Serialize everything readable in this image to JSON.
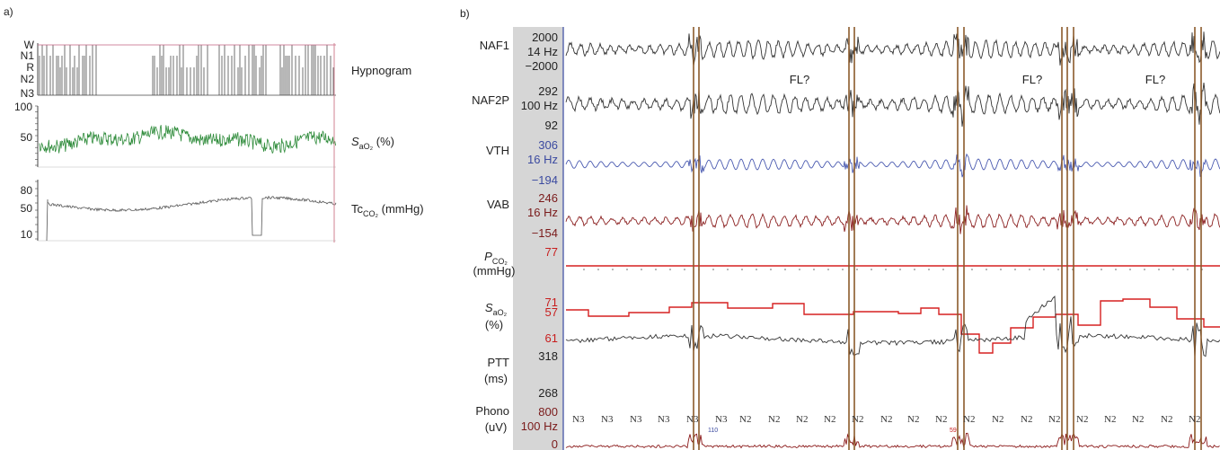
{
  "panel_a": {
    "label": "a)",
    "hypnogram": {
      "label": "Hypnogram",
      "stages": [
        "W",
        "N1",
        "R",
        "N2",
        "N3"
      ]
    },
    "sao2": {
      "label_main": "S",
      "label_sub": "aO₂",
      "label_unit": " (%)",
      "ticks": [
        "100",
        "50"
      ],
      "color": "#2e8b3a"
    },
    "tcco2": {
      "label_main": "Tc",
      "label_sub": "CO₂",
      "label_unit": " (mmHg)",
      "ticks": [
        "80",
        "50",
        "10"
      ],
      "color": "#555555"
    }
  },
  "panel_b": {
    "label": "b)",
    "channels": [
      {
        "name": "NAF1",
        "scale": [
          "2000",
          "14 Hz",
          "−2000"
        ],
        "color": "#333333",
        "scale_color": "#222222"
      },
      {
        "name": "NAF2P",
        "scale": [
          "292",
          "100 Hz",
          "92"
        ],
        "color": "#333333",
        "scale_color": "#222222"
      },
      {
        "name": "VTH",
        "scale": [
          "306",
          "16 Hz",
          "−194"
        ],
        "color": "#4a5ab0",
        "scale_color": "#3b4aa0"
      },
      {
        "name": "VAB",
        "scale": [
          "246",
          "16 Hz",
          "−154"
        ],
        "color": "#8b2020",
        "scale_color": "#7a1a1a"
      },
      {
        "name_main": "P",
        "name_sub": "CO₂",
        "name_unit": "(mmHg)",
        "scale": [
          "77",
          "57"
        ],
        "color": "#d62020",
        "scale_color": "#c81e1e"
      },
      {
        "name_main": "S",
        "name_sub": "aO₂",
        "name_unit": "(%)",
        "scale": [
          "71",
          "61"
        ],
        "color": "#d62020",
        "scale_color": "#c81e1e"
      },
      {
        "name": "PTT",
        "name_unit": "(ms)",
        "scale": [
          "318",
          "268"
        ],
        "color": "#333333",
        "scale_color": "#222222"
      },
      {
        "name": "Phono",
        "name_unit": "(uV)",
        "scale": [
          "800",
          "100 Hz",
          "0"
        ],
        "color": "#8b1a1a",
        "scale_color": "#7a1a1a"
      }
    ],
    "annotations": [
      "FL?",
      "FL?",
      "FL?"
    ],
    "sleep_stages": [
      "N3",
      "N3",
      "N3",
      "N3",
      "N3",
      "N3",
      "N2",
      "N2",
      "N2",
      "N2",
      "N2",
      "N2",
      "N2",
      "N2",
      "N2",
      "N2",
      "N2",
      "N2",
      "N2",
      "N2",
      "N2",
      "N2",
      "N2"
    ],
    "small_numbers": [
      "110",
      "59"
    ],
    "event_line_color": "#8b5a2b"
  }
}
